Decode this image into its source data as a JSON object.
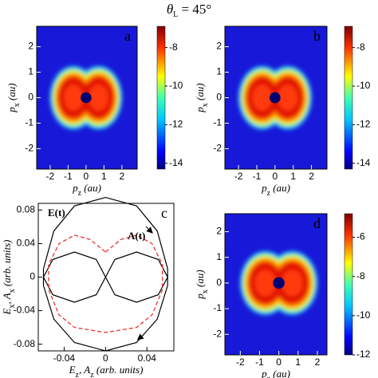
{
  "title": [
    "θ",
    "L",
    " = 45°"
  ],
  "chart_data": [
    {
      "type": "heatmap",
      "panel_label": "a",
      "xlim": [
        -2.75,
        2.85
      ],
      "ylim": [
        -2.8,
        2.8
      ],
      "xticks": [
        -2,
        -1,
        0,
        1,
        2
      ],
      "yticks": [
        -2,
        -1,
        0,
        1,
        2
      ],
      "x_label": [
        "p",
        "z",
        " (au)"
      ],
      "y_label": [
        "p",
        "x",
        " (au)"
      ],
      "clim": [
        -14.3,
        -6.9
      ],
      "cticks": [
        -14,
        -12,
        -10,
        -8
      ]
    },
    {
      "type": "heatmap",
      "panel_label": "b",
      "xlim": [
        -2.75,
        2.85
      ],
      "ylim": [
        -2.8,
        2.8
      ],
      "xticks": [
        -2,
        -1,
        0,
        1,
        2
      ],
      "yticks": [
        -2,
        -1,
        0,
        1,
        2
      ],
      "x_label": [
        "p",
        "z",
        " (au)"
      ],
      "y_label": [
        "p",
        "x",
        " (au)"
      ],
      "clim": [
        -14.3,
        -6.9
      ],
      "cticks": [
        -14,
        -12,
        -10,
        -8
      ]
    },
    {
      "type": "line",
      "panel_label": "c",
      "xlim": [
        -0.065,
        0.066
      ],
      "ylim": [
        -0.088,
        0.088
      ],
      "xticks": [
        -0.04,
        0,
        0.04
      ],
      "yticks": [
        -0.08,
        -0.04,
        0,
        0.04,
        0.08
      ],
      "x_label": [
        "E",
        "z",
        ", A",
        "z",
        " (arb. units)"
      ],
      "y_label": [
        "E",
        "x",
        ", A",
        "x",
        " (arb. units)"
      ],
      "series": [
        {
          "name": "E(t)",
          "color": "#000000",
          "dashed": false,
          "x": [
            -0.06,
            -0.05,
            -0.03,
            0,
            0.03,
            0.05,
            0.06,
            0.06,
            0.05,
            0.03,
            0,
            -0.03,
            -0.05,
            -0.06,
            -0.06,
            null,
            -0.06,
            -0.051,
            -0.03,
            -0.009,
            0,
            -0.009,
            -0.03,
            -0.051,
            -0.06,
            null,
            0,
            0.009,
            0.03,
            0.051,
            0.06,
            0.051,
            0.03,
            0.009,
            0
          ],
          "values": [
            0.01,
            0.055,
            0.085,
            0.095,
            0.085,
            0.055,
            0.01,
            -0.01,
            -0.05,
            -0.078,
            -0.088,
            -0.078,
            -0.05,
            -0.01,
            0.01,
            null,
            0,
            0.021,
            0.03,
            0.021,
            0,
            -0.021,
            -0.03,
            -0.021,
            0,
            null,
            0,
            0.021,
            0.03,
            0.021,
            0,
            -0.021,
            -0.03,
            -0.021,
            0
          ]
        },
        {
          "name": "A(t)",
          "color": "#e8251f",
          "dashed": true,
          "x": [
            0,
            0.015,
            0.03,
            0.045,
            0.055,
            0.055,
            0.045,
            0.03,
            0,
            -0.03,
            -0.045,
            -0.055,
            -0.055,
            -0.045,
            -0.03,
            -0.015,
            0
          ],
          "values": [
            0.03,
            0.045,
            0.05,
            0.04,
            0.015,
            -0.015,
            -0.045,
            -0.06,
            -0.066,
            -0.06,
            -0.045,
            -0.015,
            0.015,
            0.04,
            0.05,
            0.045,
            0.03
          ]
        }
      ]
    },
    {
      "type": "heatmap",
      "panel_label": "d",
      "xlim": [
        -2.8,
        2.5
      ],
      "ylim": [
        -2.8,
        2.7
      ],
      "xticks": [
        -2,
        -1,
        0,
        1,
        2
      ],
      "yticks": [
        -2,
        -1,
        0,
        1,
        2
      ],
      "x_label": [
        "p",
        "z",
        " (au)"
      ],
      "y_label": [
        "p",
        "x",
        " (au)"
      ],
      "clim": [
        -12,
        -4.8
      ],
      "cticks": [
        -12,
        -10,
        -8,
        -6
      ]
    }
  ]
}
